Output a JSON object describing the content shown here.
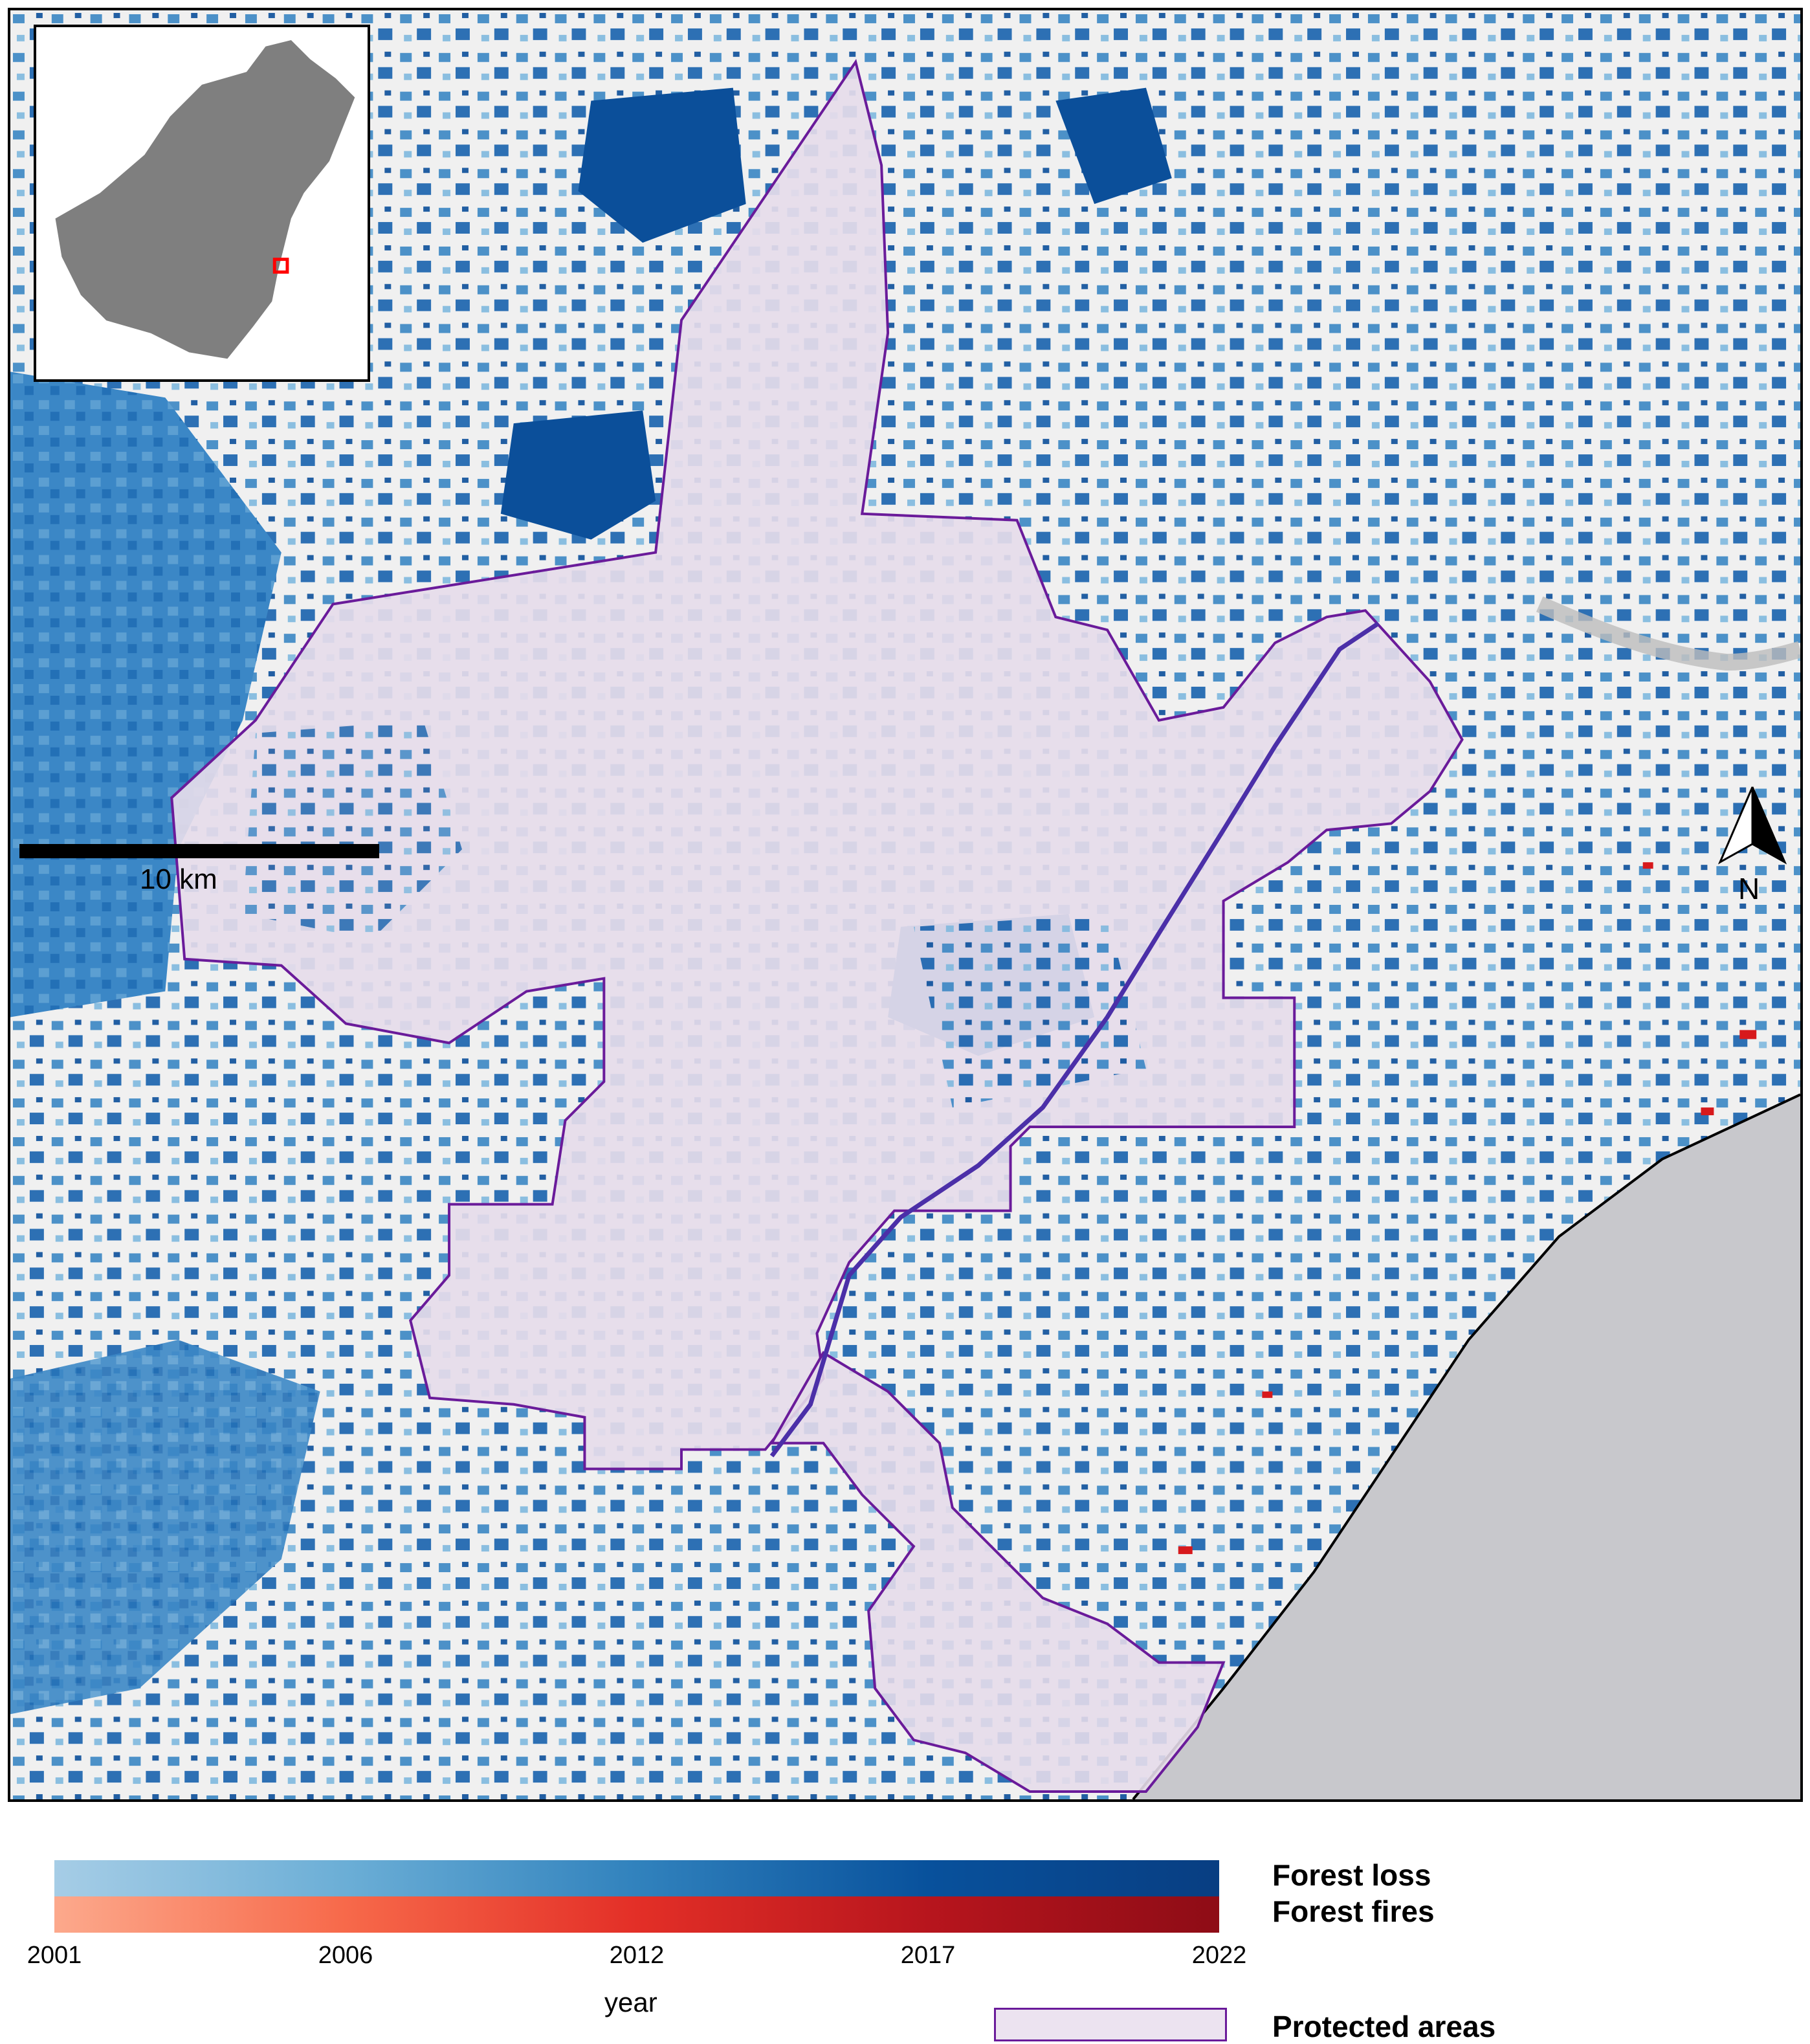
{
  "map": {
    "scale_label": "10 km",
    "north_label": "N",
    "colors": {
      "background": "#f0f0f0",
      "sea": "#c8c8cc",
      "protected_fill": "#e6dcea",
      "protected_border": "#6a1b9a",
      "road": "#4b2fa8",
      "inset_land": "#7f7f7f",
      "inset_marker": "#ff0000",
      "loss_light": "#a6cde6",
      "loss_dark": "#08519c",
      "fire": "#d7191c"
    }
  },
  "legend": {
    "forest_loss_label": "Forest loss",
    "forest_fires_label": "Forest fires",
    "axis_label": "year",
    "ticks": [
      "2001",
      "2006",
      "2012",
      "2017",
      "2022"
    ],
    "protected_label": "Protected areas"
  }
}
